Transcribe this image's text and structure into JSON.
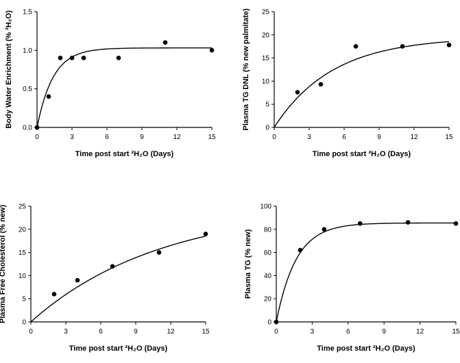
{
  "chart_data": [
    {
      "type": "scatter",
      "xlabel": "Time post start ²H₂O (Days)",
      "ylabel": "Body Water Enrichment (% ²H₂O)",
      "xlim": [
        0,
        15
      ],
      "ylim": [
        0,
        1.5
      ],
      "xticks": [
        "0",
        "3",
        "6",
        "9",
        "12",
        "15"
      ],
      "yticks": [
        "0.0",
        "0.5",
        "1.0",
        "1.5"
      ],
      "x": [
        0,
        1,
        2,
        3,
        4,
        7,
        11,
        15
      ],
      "y": [
        0.0,
        0.4,
        0.9,
        0.9,
        0.9,
        0.9,
        1.1,
        1.0
      ],
      "fit": {
        "model": "one-phase exponential",
        "plateau": 1.03,
        "k": 0.72,
        "y0": 0
      }
    },
    {
      "type": "scatter",
      "xlabel": "Time post start ²H₂O (Days)",
      "ylabel": "Plasma TG DNL (% new palmitate)",
      "xlim": [
        0,
        15
      ],
      "ylim": [
        0,
        25
      ],
      "xticks": [
        "0",
        "3",
        "6",
        "9",
        "12",
        "15"
      ],
      "yticks": [
        "0",
        "5",
        "10",
        "15",
        "20",
        "25"
      ],
      "x": [
        2,
        4,
        7,
        11,
        15
      ],
      "y": [
        7.6,
        9.3,
        17.5,
        17.5,
        17.8
      ],
      "fit": {
        "model": "one-phase exponential",
        "plateau": 19.5,
        "k": 0.2,
        "y0": 0
      }
    },
    {
      "type": "scatter",
      "xlabel": "Time post start ²H₂O (Days)",
      "ylabel": "Plasma Free Cholesterol (% new)",
      "xlim": [
        0,
        15
      ],
      "ylim": [
        0,
        25
      ],
      "xticks": [
        "0",
        "3",
        "6",
        "9",
        "12",
        "15"
      ],
      "yticks": [
        "0",
        "5",
        "10",
        "15",
        "20",
        "25"
      ],
      "x": [
        2,
        4,
        7,
        11,
        15
      ],
      "y": [
        6.0,
        9.0,
        12.0,
        15.0,
        19.0
      ],
      "fit": {
        "model": "one-phase exponential",
        "plateau": 25,
        "k": 0.09,
        "y0": 0
      }
    },
    {
      "type": "scatter",
      "xlabel": "Time post start ²H₂O (Days)",
      "ylabel": "Plasma TG (% new)",
      "xlim": [
        0,
        15
      ],
      "ylim": [
        0,
        100
      ],
      "xticks": [
        "0",
        "3",
        "6",
        "9",
        "12",
        "15"
      ],
      "yticks": [
        "0",
        "20",
        "40",
        "60",
        "80",
        "100"
      ],
      "x": [
        0,
        2,
        4,
        7,
        11,
        15
      ],
      "y": [
        0,
        62,
        80,
        85,
        86,
        85
      ],
      "fit": {
        "model": "one-phase exponential",
        "plateau": 85.5,
        "k": 0.6,
        "y0": 0
      }
    }
  ]
}
